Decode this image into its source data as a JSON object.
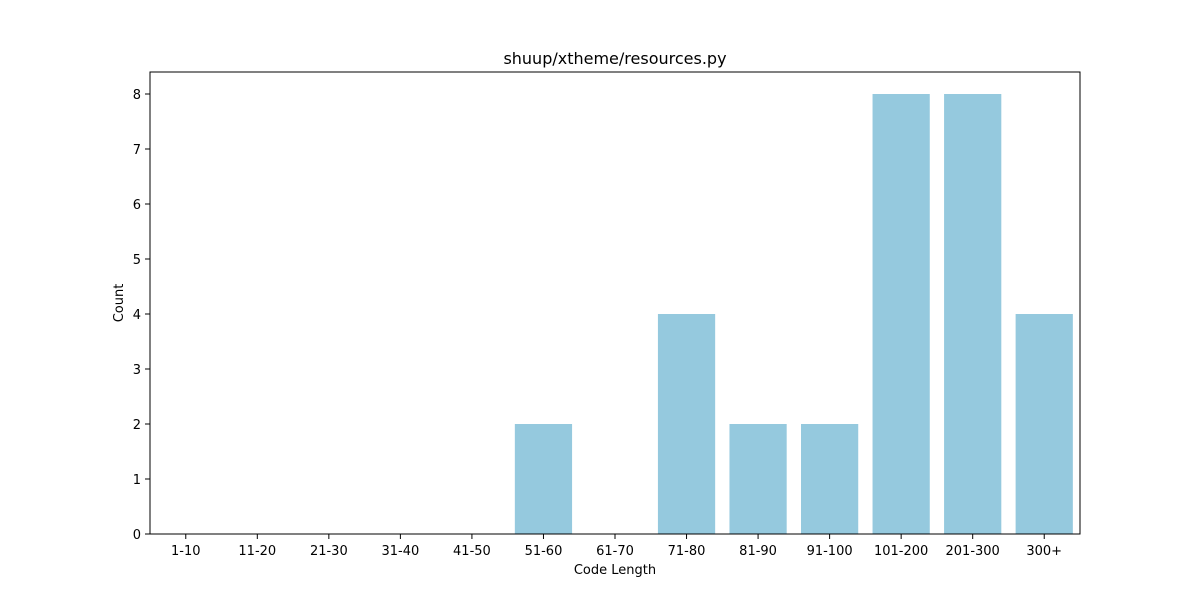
{
  "chart_data": {
    "type": "bar",
    "title": "shuup/xtheme/resources.py",
    "xlabel": "Code Length",
    "ylabel": "Count",
    "categories": [
      "1-10",
      "11-20",
      "21-30",
      "31-40",
      "41-50",
      "51-60",
      "61-70",
      "71-80",
      "81-90",
      "91-100",
      "101-200",
      "201-300",
      "300+"
    ],
    "values": [
      0,
      0,
      0,
      0,
      0,
      2,
      0,
      4,
      2,
      2,
      8,
      8,
      4
    ],
    "ylim": [
      0,
      8.4
    ],
    "yticks": [
      0,
      1,
      2,
      3,
      4,
      5,
      6,
      7,
      8
    ],
    "grid": false,
    "bar_color": "#95c9de"
  }
}
